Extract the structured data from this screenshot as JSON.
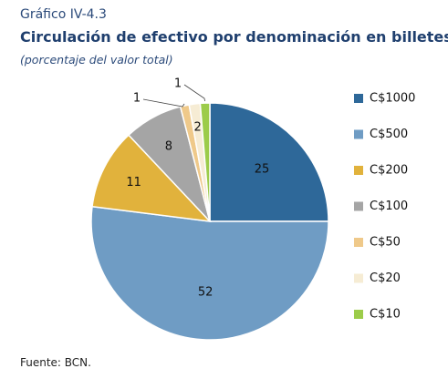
{
  "header": {
    "kicker": "Gráfico  IV-4.3",
    "title": "Circulación de efectivo por denominación en billetes",
    "subtitle": "(porcentaje del valor total)"
  },
  "footer": {
    "source": "Fuente: BCN."
  },
  "chart_data": {
    "type": "pie",
    "legend_position": "right",
    "slices": [
      {
        "name": "C$1000",
        "value": 25,
        "label": "25",
        "color": "#2e6899"
      },
      {
        "name": "C$500",
        "value": 52,
        "label": "52",
        "color": "#6f9cc4"
      },
      {
        "name": "C$200",
        "value": 11,
        "label": "11",
        "color": "#e1b23c"
      },
      {
        "name": "C$100",
        "value": 8,
        "label": "8",
        "color": "#a5a5a5"
      },
      {
        "name": "C$50",
        "value": 1.2,
        "label": "1",
        "color": "#efc98a"
      },
      {
        "name": "C$20",
        "value": 1.5,
        "label": "2",
        "color": "#f6ecd4"
      },
      {
        "name": "C$10",
        "value": 1.3,
        "label": "1",
        "color": "#9ccc4a"
      }
    ]
  }
}
